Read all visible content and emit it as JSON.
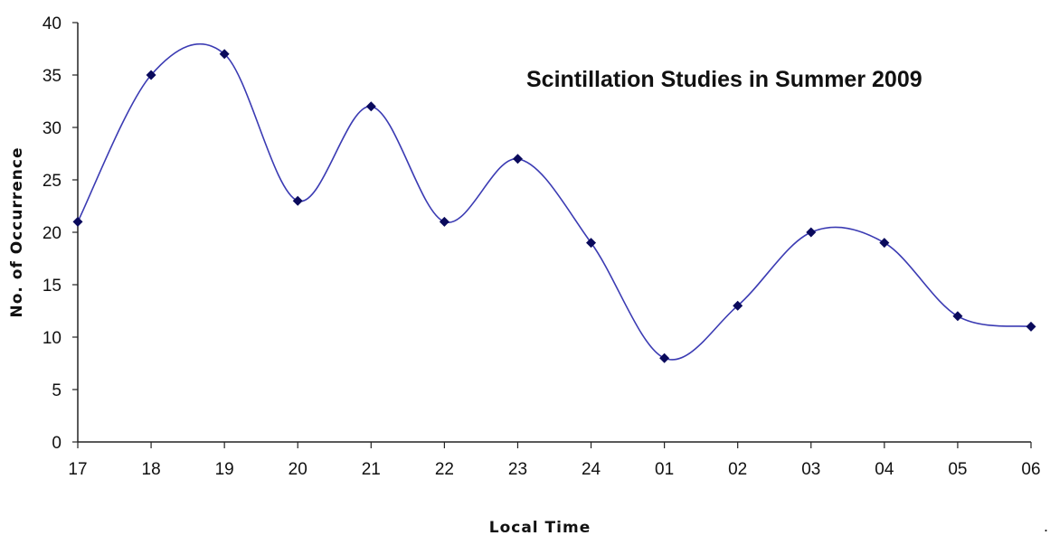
{
  "chart_data": {
    "type": "line",
    "title": "Scintillation Studies in Summer 2009",
    "xlabel": "Local Time",
    "ylabel": "No. of Occurrence",
    "ylim": [
      0,
      40
    ],
    "yticks": [
      "0",
      "5",
      "10",
      "15",
      "20",
      "25",
      "30",
      "35",
      "40"
    ],
    "categories": [
      "17",
      "18",
      "19",
      "20",
      "21",
      "22",
      "23",
      "24",
      "01",
      "02",
      "03",
      "04",
      "05",
      "06"
    ],
    "values": [
      21,
      35,
      37,
      23,
      32,
      21,
      27,
      19,
      8,
      13,
      20,
      19,
      12,
      11
    ],
    "smoothed": true,
    "marker": "diamond",
    "line_color": "#3B3BB3",
    "marker_color": "#0A0A5C",
    "grid": false,
    "legend": "none",
    "stray_mark": "."
  }
}
